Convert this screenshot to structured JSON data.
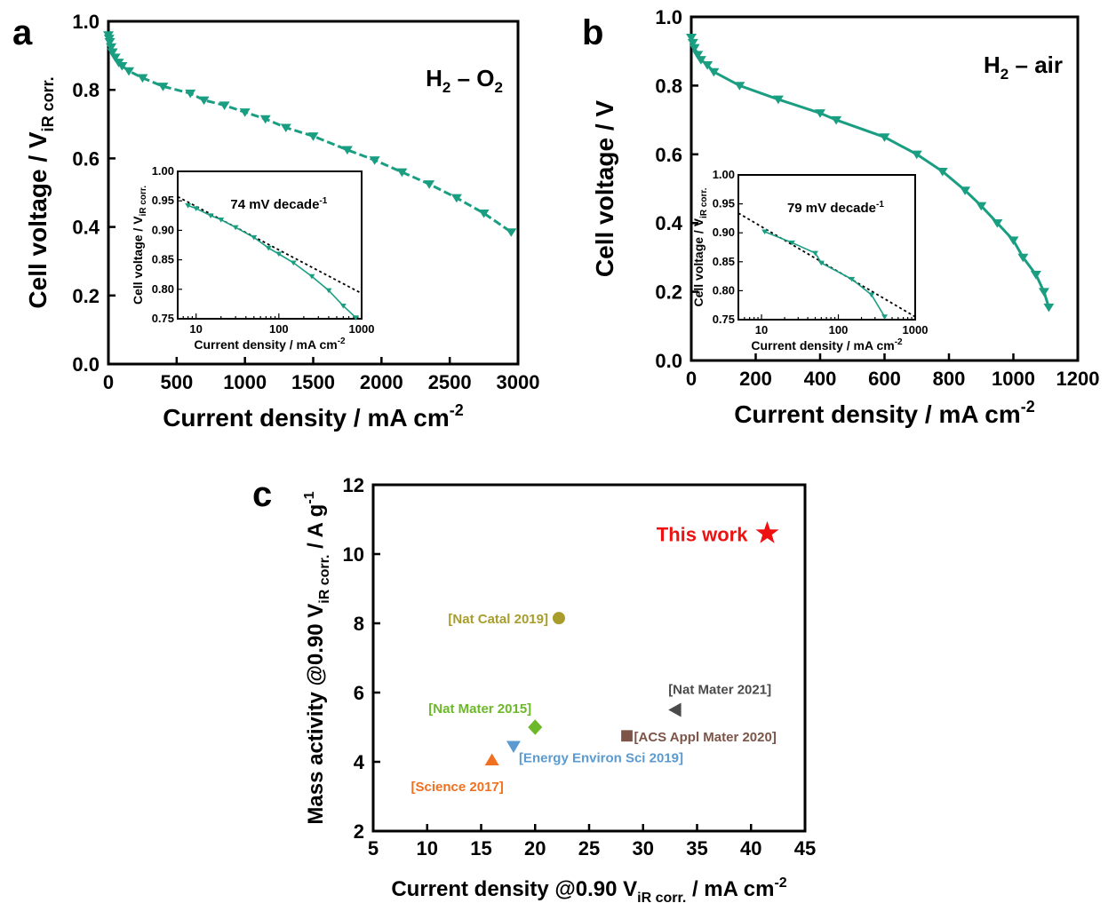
{
  "panels": {
    "a": {
      "letter": "a"
    },
    "b": {
      "letter": "b"
    },
    "c": {
      "letter": "c"
    }
  },
  "chart_data": [
    {
      "id": "a",
      "type": "line",
      "xlabel": "Current density / mA cm",
      "xlabel_sup": "-2",
      "ylabel": "Cell voltage / V",
      "ylabel_sub": "iR corr.",
      "annotation": {
        "base1": "H",
        "sub1": "2",
        "dash": " – ",
        "base2": "O",
        "sub2": "2"
      },
      "xlim": [
        0,
        3000
      ],
      "ylim": [
        0.0,
        1.0
      ],
      "xticks": [
        0,
        500,
        1000,
        1500,
        2000,
        2500,
        3000
      ],
      "yticks": [
        0.0,
        0.2,
        0.4,
        0.6,
        0.8,
        1.0
      ],
      "ytick_labels": [
        "0.0",
        "0.2",
        "0.4",
        "0.6",
        "0.8",
        "1.0"
      ],
      "line_style": "dashed",
      "series": [
        {
          "x": [
            0,
            5,
            10,
            20,
            30,
            50,
            75,
            100,
            150,
            250,
            400,
            600,
            700,
            850,
            1000,
            1150,
            1300,
            1500,
            1750,
            1950,
            2150,
            2350,
            2550,
            2750,
            2950
          ],
          "y": [
            0.96,
            0.95,
            0.94,
            0.925,
            0.91,
            0.895,
            0.88,
            0.87,
            0.855,
            0.835,
            0.81,
            0.79,
            0.77,
            0.755,
            0.735,
            0.715,
            0.69,
            0.665,
            0.625,
            0.595,
            0.56,
            0.525,
            0.485,
            0.44,
            0.385
          ]
        }
      ],
      "inset": {
        "type": "line",
        "xscale": "log",
        "xlabel": "Current density / mA cm",
        "xlabel_sup": "-2",
        "ylabel": "Cell voltage / V",
        "ylabel_sub": "iR corr.",
        "xlim": [
          6,
          1000
        ],
        "ylim": [
          0.75,
          1.0
        ],
        "xticks": [
          10,
          100,
          1000
        ],
        "xtick_labels": [
          "10",
          "100",
          "1000"
        ],
        "yticks": [
          0.75,
          0.8,
          0.85,
          0.9,
          0.95,
          1.0
        ],
        "ytick_labels": [
          "0.75",
          "0.80",
          "0.85",
          "0.90",
          "0.95",
          "1.00"
        ],
        "annotation": "74 mV decade",
        "annotation_sup": "-1",
        "series": [
          {
            "x": [
              8,
              10,
              15,
              20,
              30,
              50,
              75,
              100,
              150,
              250,
              400,
              600,
              850
            ],
            "y": [
              0.942,
              0.937,
              0.925,
              0.918,
              0.905,
              0.888,
              0.87,
              0.86,
              0.845,
              0.822,
              0.798,
              0.772,
              0.752
            ]
          }
        ],
        "fit_line": {
          "x": [
            6,
            1000
          ],
          "y": [
            0.957,
            0.793
          ]
        }
      }
    },
    {
      "id": "b",
      "type": "line",
      "xlabel": "Current density / mA cm",
      "xlabel_sup": "-2",
      "ylabel": "Cell voltage / V",
      "annotation": {
        "base1": "H",
        "sub1": "2",
        "dash": " – ",
        "base2": "air",
        "sub2": ""
      },
      "xlim": [
        0,
        1200
      ],
      "ylim": [
        0.0,
        1.0
      ],
      "xticks": [
        0,
        200,
        400,
        600,
        800,
        1000,
        1200
      ],
      "yticks": [
        0.0,
        0.2,
        0.4,
        0.6,
        0.8,
        1.0
      ],
      "ytick_labels": [
        "0.0",
        "0.2",
        "0.4",
        "0.6",
        "0.8",
        "1.0"
      ],
      "line_style": "solid",
      "series": [
        {
          "x": [
            0,
            5,
            10,
            20,
            30,
            50,
            70,
            150,
            270,
            400,
            450,
            600,
            700,
            780,
            850,
            900,
            950,
            1000,
            1030,
            1070,
            1095,
            1110
          ],
          "y": [
            0.94,
            0.925,
            0.91,
            0.89,
            0.875,
            0.86,
            0.84,
            0.8,
            0.76,
            0.72,
            0.7,
            0.65,
            0.6,
            0.55,
            0.495,
            0.45,
            0.4,
            0.35,
            0.3,
            0.25,
            0.2,
            0.155
          ]
        }
      ],
      "inset": {
        "type": "line",
        "xscale": "log",
        "xlabel": "Current density / mA cm",
        "xlabel_sup": "-2",
        "ylabel": "Cell voltage / V",
        "ylabel_sub": "iR corr.",
        "xlim": [
          5,
          1000
        ],
        "ylim": [
          0.75,
          1.0
        ],
        "xticks": [
          10,
          100,
          1000
        ],
        "xtick_labels": [
          "10",
          "100",
          "1000"
        ],
        "yticks": [
          0.75,
          0.8,
          0.85,
          0.9,
          0.95,
          1.0
        ],
        "ytick_labels": [
          "0.75",
          "0.80",
          "0.85",
          "0.90",
          "0.95",
          "1.00"
        ],
        "annotation": "79 mV decade",
        "annotation_sup": "-1",
        "series": [
          {
            "x": [
              11,
              25,
              50,
              60,
              150,
              270,
              400
            ],
            "y": [
              0.902,
              0.883,
              0.865,
              0.848,
              0.82,
              0.793,
              0.755
            ]
          }
        ],
        "fit_line": {
          "x": [
            5,
            1000
          ],
          "y": [
            0.934,
            0.755
          ]
        }
      }
    },
    {
      "id": "c",
      "type": "scatter",
      "xlabel": "Current density @0.90 V",
      "xlabel_sub": "iR corr.",
      "xlabel_tail": " / mA cm",
      "xlabel_sup": "-2",
      "ylabel": "Mass activity @0.90 V",
      "ylabel_sub": "iR corr.",
      "ylabel_tail": " / A g",
      "ylabel_sup": "-1",
      "xlim": [
        5,
        45
      ],
      "ylim": [
        2,
        12
      ],
      "xticks": [
        5,
        10,
        15,
        20,
        25,
        30,
        35,
        40,
        45
      ],
      "yticks": [
        2,
        4,
        6,
        8,
        10,
        12
      ],
      "points": [
        {
          "label": "This work",
          "x": 41.5,
          "y": 10.6,
          "marker": "star",
          "color": "#ee1111"
        },
        {
          "label": "[Nat Catal 2019]",
          "x": 22.2,
          "y": 8.15,
          "marker": "circle",
          "color": "#a89d2c"
        },
        {
          "label": "[Nat Mater 2015]",
          "x": 20.0,
          "y": 5.0,
          "marker": "diamond",
          "color": "#6cb82a"
        },
        {
          "label": "[Energy Environ Sci 2019]",
          "x": 18.0,
          "y": 4.45,
          "marker": "triangle-down",
          "color": "#5a9ad0"
        },
        {
          "label": "[Science 2017]",
          "x": 16.0,
          "y": 4.05,
          "marker": "triangle-up",
          "color": "#f07020"
        },
        {
          "label": "[Nat Mater 2021]",
          "x": 33.0,
          "y": 5.5,
          "marker": "triangle-left",
          "color": "#4a4a4a"
        },
        {
          "label": "[ACS Appl Mater 2020]",
          "x": 28.5,
          "y": 4.75,
          "marker": "square",
          "color": "#7d5448"
        }
      ]
    }
  ],
  "colors": {
    "curve": "#1a9e82"
  }
}
